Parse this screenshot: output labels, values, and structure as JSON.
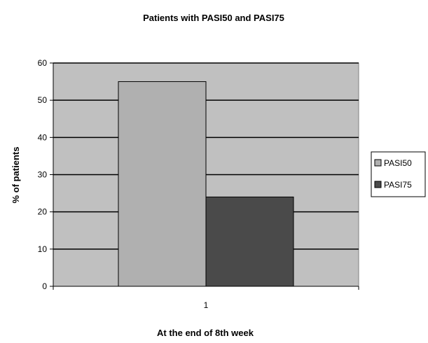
{
  "chart_data": {
    "type": "bar",
    "title": "Patients with PASI50 and PASI75",
    "xlabel": "At the end of 8th week",
    "ylabel": "% of patients",
    "categories": [
      "1"
    ],
    "series": [
      {
        "name": "PASI50",
        "values": [
          55
        ],
        "color": "#b0b0b0"
      },
      {
        "name": "PASI75",
        "values": [
          24
        ],
        "color": "#4a4a4a"
      }
    ],
    "ylim": [
      0,
      60
    ],
    "yticks": [
      0,
      10,
      20,
      30,
      40,
      50,
      60
    ],
    "grid": true,
    "plot_background": "#c0c0c0",
    "legend_position": "right"
  }
}
